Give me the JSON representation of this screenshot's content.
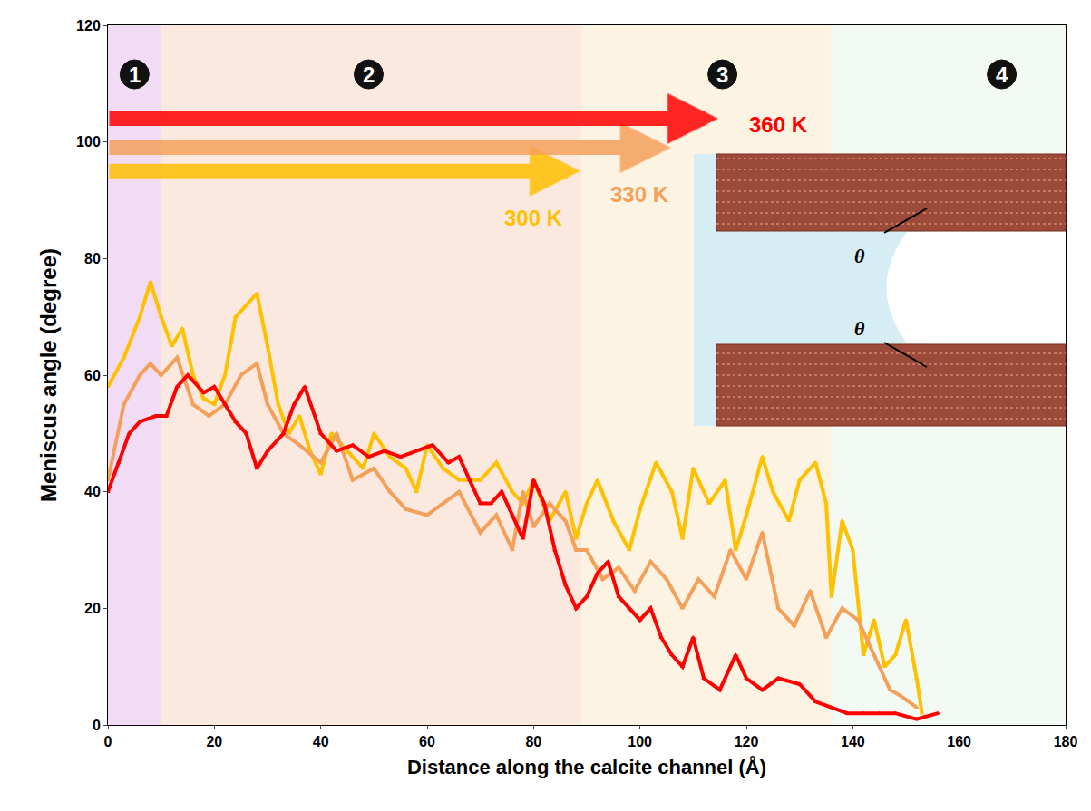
{
  "chart_data": {
    "type": "scatter",
    "x_label": "Distance along the calcite channel (Å)",
    "y_label": "Meniscus angle (degree)",
    "xlim": [
      0,
      180
    ],
    "ylim": [
      0,
      120
    ],
    "xticks": [
      0,
      20,
      40,
      60,
      80,
      100,
      120,
      140,
      160,
      180
    ],
    "yticks": [
      0,
      20,
      40,
      60,
      80,
      100,
      120
    ],
    "grid": false,
    "marker": "triangle-up",
    "regions": [
      {
        "label": "1",
        "x": [
          0,
          10
        ],
        "label_x": 5,
        "color": "#f2dcf5"
      },
      {
        "label": "2",
        "x": [
          10,
          89
        ],
        "label_x": 49,
        "color": "#fbe9e0"
      },
      {
        "label": "3",
        "x": [
          89,
          136
        ],
        "label_x": 115.5,
        "color": "#fdf3e3"
      },
      {
        "label": "4",
        "x": [
          136,
          180
        ],
        "label_x": 168,
        "color": "#f3f9f3"
      }
    ],
    "inset_labels": [
      "θ",
      "θ"
    ],
    "series": [
      {
        "name": "300 K",
        "color": "#ffc000",
        "arrow": {
          "x_end": 88.8,
          "y": 95
        },
        "label_at": [
          80,
          87
        ],
        "x": [
          0,
          3,
          6,
          8,
          10,
          12,
          14,
          16,
          18,
          20,
          22,
          24,
          26,
          28,
          30,
          32,
          34,
          36,
          38,
          40,
          42,
          45,
          48,
          50,
          53,
          56,
          58,
          60,
          63,
          66,
          70,
          73,
          76,
          78,
          80,
          83,
          86,
          88,
          90,
          92,
          95,
          98,
          100,
          103,
          106,
          108,
          110,
          113,
          116,
          118,
          120,
          123,
          125,
          128,
          130,
          133,
          135,
          136,
          138,
          140,
          142,
          144,
          146,
          148,
          150,
          152,
          153
        ],
        "values": [
          58,
          63,
          70,
          76,
          70,
          65,
          68,
          60,
          56,
          55,
          60,
          70,
          72,
          74,
          65,
          55,
          50,
          53,
          47,
          43,
          50,
          47,
          44,
          50,
          46,
          44,
          40,
          48,
          44,
          42,
          42,
          45,
          40,
          38,
          42,
          35,
          40,
          32,
          38,
          42,
          35,
          30,
          37,
          45,
          40,
          32,
          44,
          38,
          42,
          30,
          36,
          46,
          40,
          35,
          42,
          45,
          38,
          22,
          35,
          30,
          12,
          18,
          10,
          12,
          18,
          8,
          2
        ]
      },
      {
        "name": "330 K",
        "color": "#f5a05a",
        "arrow": {
          "x_end": 105.8,
          "y": 99
        },
        "label_at": [
          100,
          91
        ],
        "x": [
          0,
          3,
          6,
          8,
          10,
          13,
          16,
          19,
          22,
          25,
          28,
          30,
          33,
          36,
          40,
          43,
          46,
          50,
          53,
          56,
          60,
          63,
          66,
          70,
          73,
          76,
          78,
          80,
          83,
          86,
          88,
          90,
          93,
          96,
          99,
          102,
          105,
          108,
          111,
          114,
          117,
          120,
          123,
          126,
          129,
          132,
          135,
          138,
          141,
          144,
          147,
          149,
          152
        ],
        "values": [
          42,
          55,
          60,
          62,
          60,
          63,
          55,
          53,
          55,
          60,
          62,
          55,
          50,
          48,
          45,
          50,
          42,
          44,
          40,
          37,
          36,
          38,
          40,
          33,
          36,
          30,
          40,
          34,
          38,
          35,
          30,
          30,
          25,
          27,
          23,
          28,
          25,
          20,
          25,
          22,
          30,
          25,
          33,
          20,
          17,
          23,
          15,
          20,
          18,
          12,
          6,
          5,
          3
        ]
      },
      {
        "name": "360 K",
        "color": "#ff0000",
        "arrow": {
          "x_end": 114.7,
          "y": 104
        },
        "label_at": [
          126,
          103
        ],
        "x": [
          0,
          2,
          4,
          6,
          9,
          11,
          13,
          15,
          18,
          20,
          22,
          24,
          26,
          28,
          30,
          33,
          35,
          37,
          40,
          43,
          46,
          49,
          52,
          55,
          58,
          61,
          64,
          66,
          68,
          70,
          72,
          74,
          76,
          78,
          80,
          82,
          84,
          86,
          88,
          90,
          92,
          94,
          96,
          98,
          100,
          102,
          104,
          106,
          108,
          110,
          112,
          115,
          118,
          120,
          123,
          126,
          130,
          133,
          136,
          139,
          142,
          145,
          148,
          152,
          156
        ],
        "values": [
          40,
          45,
          50,
          52,
          53,
          53,
          58,
          60,
          57,
          58,
          55,
          52,
          50,
          44,
          47,
          50,
          55,
          58,
          50,
          47,
          48,
          46,
          47,
          46,
          47,
          48,
          45,
          46,
          42,
          38,
          38,
          40,
          36,
          32,
          42,
          38,
          30,
          24,
          20,
          22,
          26,
          28,
          22,
          20,
          18,
          20,
          15,
          12,
          10,
          15,
          8,
          6,
          12,
          8,
          6,
          8,
          7,
          4,
          3,
          2,
          2,
          2,
          2,
          1,
          2
        ]
      }
    ]
  }
}
